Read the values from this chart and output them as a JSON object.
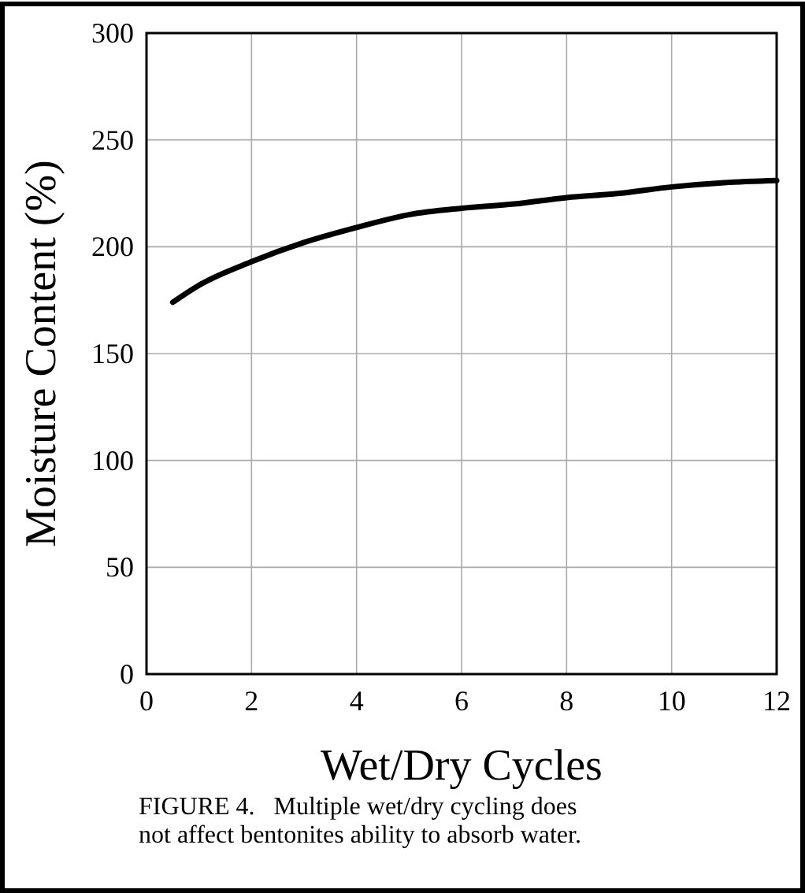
{
  "chart_data": {
    "type": "line",
    "xlabel": "Wet/Dry Cycles",
    "ylabel": "Moisture Content (%)",
    "x": [
      0.5,
      1,
      2,
      3,
      4,
      5,
      6,
      7,
      8,
      9,
      10,
      11,
      12
    ],
    "series": [
      {
        "color": "#000000",
        "values": [
          174,
          182,
          193,
          202,
          209,
          215,
          218,
          220,
          223,
          225,
          228,
          230,
          231
        ]
      }
    ],
    "xlim": [
      0,
      12
    ],
    "ylim": [
      0,
      300
    ],
    "xticks": [
      0,
      2,
      4,
      6,
      8,
      10,
      12
    ],
    "yticks": [
      0,
      50,
      100,
      150,
      200,
      250,
      300
    ],
    "grid": true,
    "marker": "none",
    "line_style": "solid",
    "annotations": [
      "FIGURE 4.   Multiple wet/dry cycling does not affect bentonites ability to absorb water."
    ]
  }
}
